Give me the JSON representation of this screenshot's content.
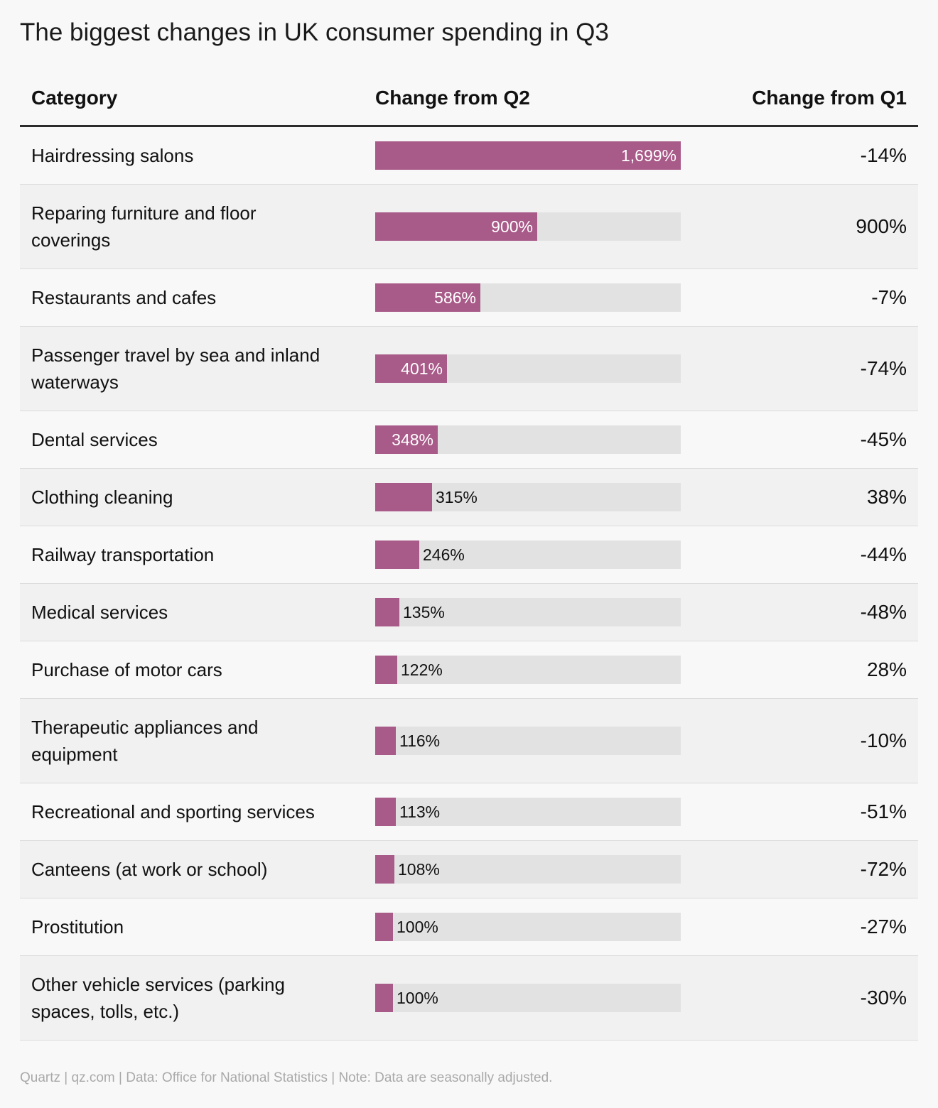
{
  "title": "The biggest changes in UK consumer spending in Q3",
  "headers": {
    "category": "Category",
    "change_q2": "Change from Q2",
    "change_q1": "Change from Q1"
  },
  "colors": {
    "bar": "#a85a88",
    "track": "#e2e2e2"
  },
  "chart_data": {
    "type": "bar",
    "title": "The biggest changes in UK consumer spending in Q3",
    "xlabel": "Change from Q2",
    "ylabel": "Category",
    "xlim": [
      0,
      1699
    ],
    "categories": [
      "Hairdressing salons",
      "Reparing furniture and floor coverings",
      "Restaurants and cafes",
      "Passenger travel by sea and inland waterways",
      "Dental services",
      "Clothing cleaning",
      "Railway transportation",
      "Medical services",
      "Purchase of motor cars",
      "Therapeutic appliances and equipment",
      "Recreational and sporting services",
      "Canteens (at work or school)",
      "Prostitution",
      "Other vehicle services (parking spaces, tolls, etc.)"
    ],
    "series": [
      {
        "name": "Change from Q2",
        "values": [
          1699,
          900,
          586,
          401,
          348,
          315,
          246,
          135,
          122,
          116,
          113,
          108,
          100,
          100
        ],
        "labels": [
          "1,699%",
          "900%",
          "586%",
          "401%",
          "348%",
          "315%",
          "246%",
          "135%",
          "122%",
          "116%",
          "113%",
          "108%",
          "100%",
          "100%"
        ]
      },
      {
        "name": "Change from Q1",
        "values": [
          -14,
          900,
          -7,
          -74,
          -45,
          38,
          -44,
          -48,
          28,
          -10,
          -51,
          -72,
          -27,
          -30
        ],
        "labels": [
          "-14%",
          "900%",
          "-7%",
          "-74%",
          "-45%",
          "38%",
          "-44%",
          "-48%",
          "28%",
          "-10%",
          "-51%",
          "-72%",
          "-27%",
          "-30%"
        ]
      }
    ]
  },
  "footer": "Quartz | qz.com | Data: Office for National Statistics | Note: Data are seasonally adjusted."
}
